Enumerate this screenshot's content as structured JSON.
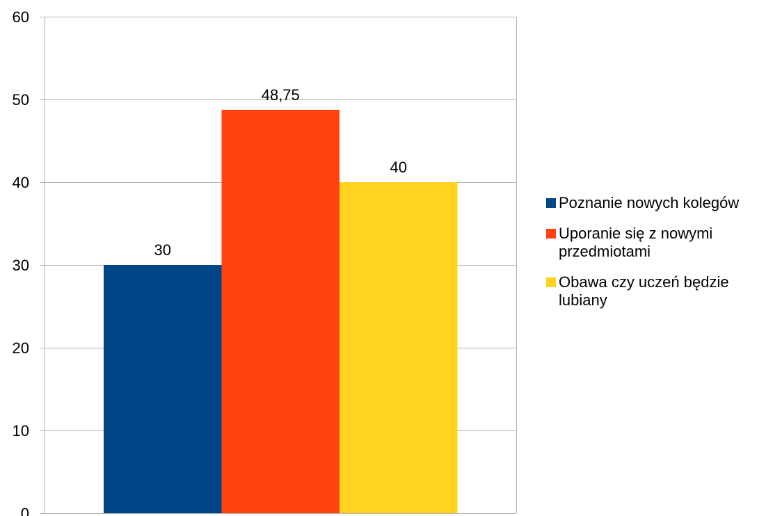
{
  "chart_data": {
    "type": "bar",
    "title": "",
    "xlabel": "",
    "ylabel": "",
    "ylim": [
      0,
      60
    ],
    "yticks": [
      0,
      10,
      20,
      30,
      40,
      50,
      60
    ],
    "grid": true,
    "legend_position": "right",
    "series": [
      {
        "name": "Poznanie nowych kolegów",
        "value": 30,
        "label": "30",
        "color": "#004586"
      },
      {
        "name": "Uporanie się z nowymi przedmiotami",
        "value": 48.75,
        "label": "48,75",
        "color": "#FF420E"
      },
      {
        "name": "Obawa czy uczeń będzie lubiany",
        "value": 40,
        "label": "40",
        "color": "#FFD320"
      }
    ]
  }
}
